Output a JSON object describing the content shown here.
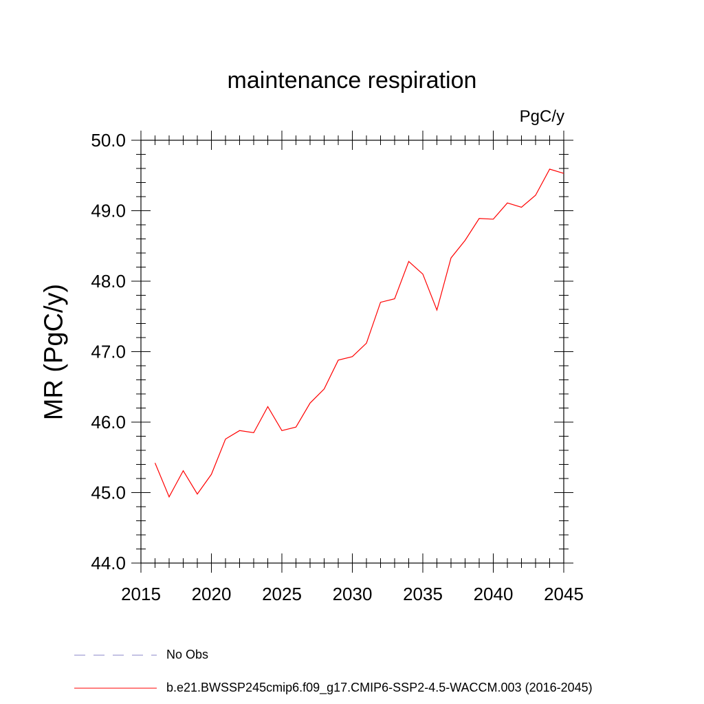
{
  "chart_data": {
    "type": "line",
    "title": "maintenance respiration",
    "units_label": "PgC/y",
    "ylabel": "MR  (PgC/y)",
    "xlim": [
      2015,
      2045
    ],
    "ylim": [
      44.0,
      50.0
    ],
    "xticks": [
      "2015",
      "2020",
      "2025",
      "2030",
      "2035",
      "2040",
      "2045"
    ],
    "yticks": [
      "44.0",
      "45.0",
      "46.0",
      "47.0",
      "48.0",
      "49.0",
      "50.0"
    ],
    "grid": false,
    "series": [
      {
        "name": "b.e21.BWSSP245cmip6.f09_g17.CMIP6-SSP2-4.5-WACCM.003 (2016-2045)",
        "color": "#ff0000",
        "x": [
          2016,
          2017,
          2018,
          2019,
          2020,
          2021,
          2022,
          2023,
          2024,
          2025,
          2026,
          2027,
          2028,
          2029,
          2030,
          2031,
          2032,
          2033,
          2034,
          2035,
          2036,
          2037,
          2038,
          2039,
          2040,
          2041,
          2042,
          2043,
          2044,
          2045
        ],
        "values": [
          45.42,
          44.94,
          45.31,
          44.98,
          45.26,
          45.76,
          45.88,
          45.85,
          46.22,
          45.88,
          45.93,
          46.27,
          46.47,
          46.88,
          46.93,
          47.12,
          47.7,
          47.75,
          48.28,
          48.1,
          47.59,
          48.33,
          48.58,
          48.89,
          48.88,
          49.11,
          49.05,
          49.22,
          49.59,
          49.53
        ]
      }
    ],
    "legend": [
      {
        "label": "No Obs",
        "style": "dashed",
        "color": "#8a86c8"
      },
      {
        "label": "b.e21.BWSSP245cmip6.f09_g17.CMIP6-SSP2-4.5-WACCM.003 (2016-2045)",
        "style": "solid",
        "color": "#ff0000"
      }
    ],
    "legend_position": "bottom"
  }
}
